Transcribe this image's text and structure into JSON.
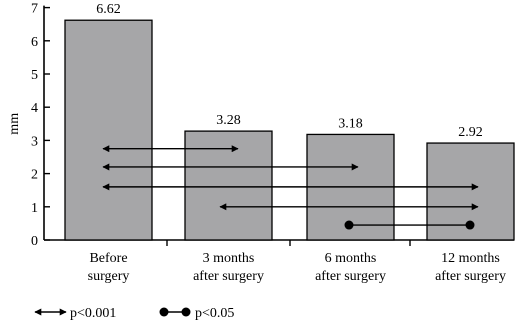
{
  "chart_data": {
    "type": "bar",
    "categories": [
      [
        "Before",
        "surgery"
      ],
      [
        "3 months",
        "after surgery"
      ],
      [
        "6 months",
        "after surgery"
      ],
      [
        "12 months",
        "after surgery"
      ]
    ],
    "values": [
      6.62,
      3.28,
      3.18,
      2.92
    ],
    "value_labels": [
      "6.62",
      "3.28",
      "3.18",
      "2.92"
    ],
    "title": "",
    "xlabel": "",
    "ylabel": "mm",
    "ylim": [
      0,
      7
    ],
    "yticks": [
      "0",
      "1",
      "2",
      "3",
      "4",
      "5",
      "6",
      "7"
    ],
    "grid": false,
    "bar_color": "#a6a6a8",
    "comparisons": [
      {
        "from": 0,
        "to": 1,
        "y": 2.75,
        "marker": "arrow"
      },
      {
        "from": 0,
        "to": 2,
        "y": 2.2,
        "marker": "arrow"
      },
      {
        "from": 0,
        "to": 3,
        "y": 1.6,
        "marker": "arrow"
      },
      {
        "from": 1,
        "to": 3,
        "y": 1.0,
        "marker": "arrow"
      },
      {
        "from": 2,
        "to": 3,
        "y": 0.45,
        "marker": "dot"
      }
    ],
    "legend": [
      {
        "marker": "arrow",
        "label": "p<0.001"
      },
      {
        "marker": "dot",
        "label": "p<0.05"
      }
    ],
    "legend_position": "bottom-left"
  }
}
